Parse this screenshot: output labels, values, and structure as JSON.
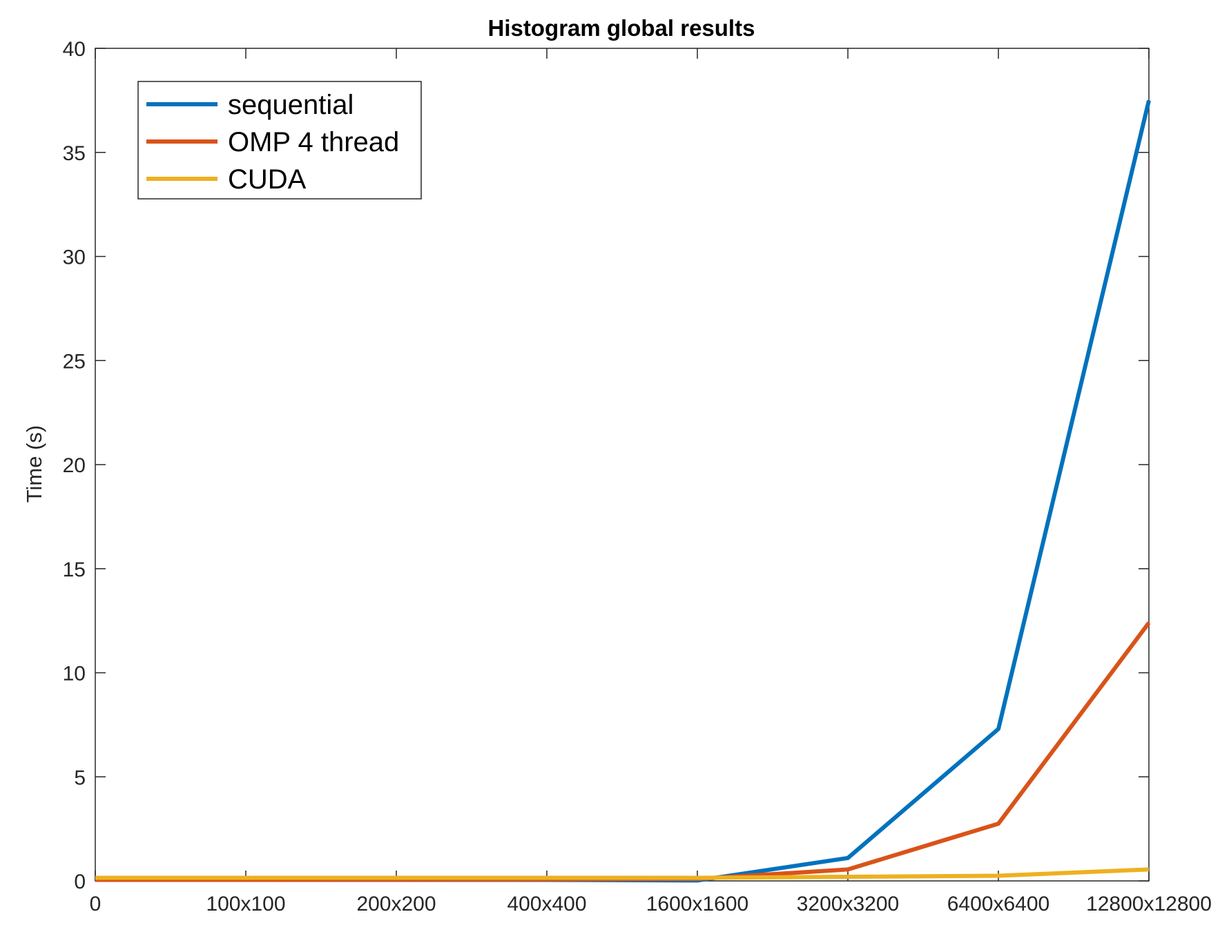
{
  "chart_data": {
    "type": "line",
    "title": "Histogram global results",
    "xlabel": "",
    "ylabel": "Time (s)",
    "categories": [
      "0",
      "100x100",
      "200x200",
      "400x400",
      "1600x1600",
      "3200x3200",
      "6400x6400",
      "12800x12800"
    ],
    "ylim": [
      0,
      40
    ],
    "yticks": [
      0,
      5,
      10,
      15,
      20,
      25,
      30,
      35,
      40
    ],
    "grid": false,
    "legend_position": "top-left",
    "series": [
      {
        "name": "sequential",
        "color": "#0072BD",
        "values": [
          0.05,
          0.05,
          0.05,
          0.05,
          0.02,
          1.1,
          7.3,
          37.5
        ]
      },
      {
        "name": "OMP 4 thread",
        "color": "#D95319",
        "values": [
          0.05,
          0.05,
          0.06,
          0.07,
          0.1,
          0.55,
          2.75,
          12.4
        ]
      },
      {
        "name": "CUDA",
        "color": "#EDB120",
        "values": [
          0.15,
          0.15,
          0.15,
          0.15,
          0.15,
          0.2,
          0.25,
          0.55
        ]
      }
    ]
  }
}
